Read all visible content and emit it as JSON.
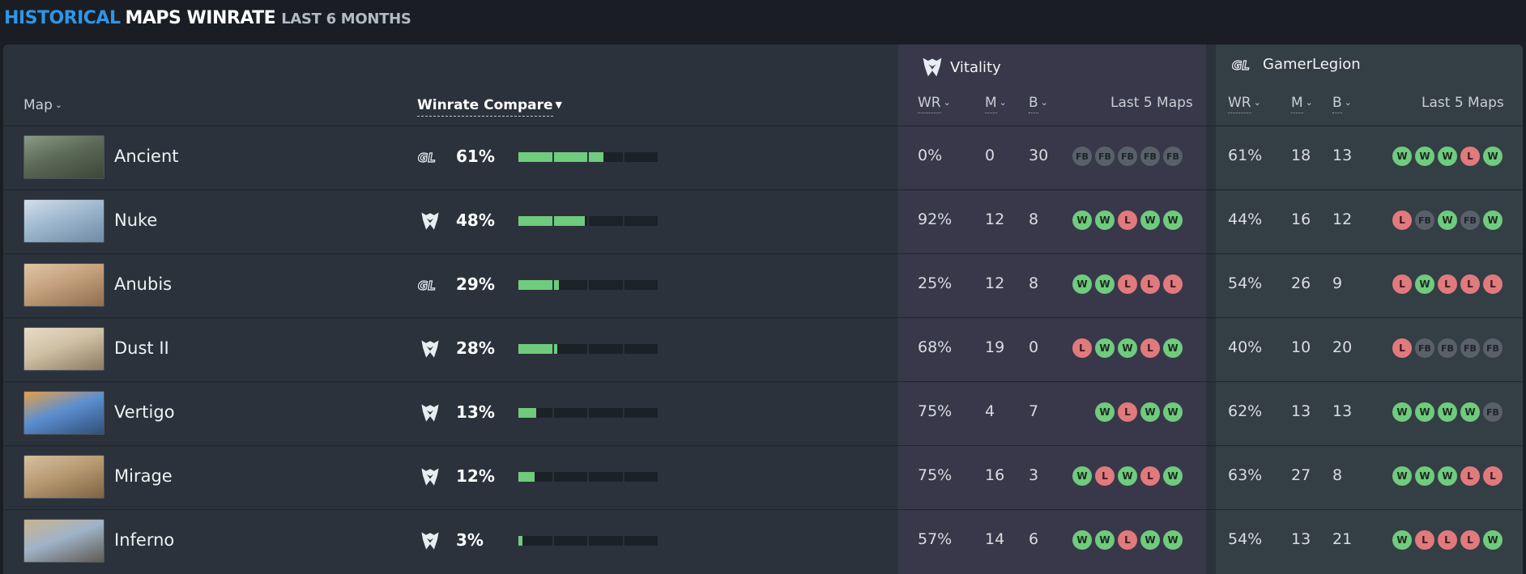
{
  "heading": {
    "part1": "HISTORICAL",
    "part2": "MAPS WINRATE",
    "part3": "LAST 6 MONTHS"
  },
  "headers": {
    "map": "Map",
    "compare": "Winrate Compare",
    "wr": "WR",
    "m": "M",
    "b": "B",
    "last5": "Last 5 Maps"
  },
  "teams": {
    "vitality": {
      "name": "Vitality"
    },
    "gamerlegion": {
      "name": "GamerLegion"
    }
  },
  "colors": {
    "accent": "#2f95e8",
    "win": "#6fcb7d",
    "loss": "#e07a7d",
    "fb": "#59606a"
  },
  "rows": [
    {
      "map": "Ancient",
      "cmp_team": "gamerlegion",
      "cmp_pct": "61%",
      "cmp_value": 61,
      "vit": {
        "wr": "0%",
        "m": "0",
        "b": "30",
        "last5": [
          "FB",
          "FB",
          "FB",
          "FB",
          "FB"
        ]
      },
      "gl": {
        "wr": "61%",
        "m": "18",
        "b": "13",
        "last5": [
          "W",
          "W",
          "W",
          "L",
          "W"
        ]
      }
    },
    {
      "map": "Nuke",
      "cmp_team": "vitality",
      "cmp_pct": "48%",
      "cmp_value": 48,
      "vit": {
        "wr": "92%",
        "m": "12",
        "b": "8",
        "last5": [
          "W",
          "W",
          "L",
          "W",
          "W"
        ]
      },
      "gl": {
        "wr": "44%",
        "m": "16",
        "b": "12",
        "last5": [
          "L",
          "FB",
          "W",
          "FB",
          "W"
        ]
      }
    },
    {
      "map": "Anubis",
      "cmp_team": "gamerlegion",
      "cmp_pct": "29%",
      "cmp_value": 29,
      "vit": {
        "wr": "25%",
        "m": "12",
        "b": "8",
        "last5": [
          "W",
          "W",
          "L",
          "L",
          "L"
        ]
      },
      "gl": {
        "wr": "54%",
        "m": "26",
        "b": "9",
        "last5": [
          "L",
          "W",
          "L",
          "L",
          "L"
        ]
      }
    },
    {
      "map": "Dust II",
      "cmp_team": "vitality",
      "cmp_pct": "28%",
      "cmp_value": 28,
      "vit": {
        "wr": "68%",
        "m": "19",
        "b": "0",
        "last5": [
          "L",
          "W",
          "W",
          "L",
          "W"
        ]
      },
      "gl": {
        "wr": "40%",
        "m": "10",
        "b": "20",
        "last5": [
          "L",
          "FB",
          "FB",
          "FB",
          "FB"
        ]
      }
    },
    {
      "map": "Vertigo",
      "cmp_team": "vitality",
      "cmp_pct": "13%",
      "cmp_value": 13,
      "vit": {
        "wr": "75%",
        "m": "4",
        "b": "7",
        "last5": [
          "W",
          "L",
          "W",
          "W"
        ]
      },
      "gl": {
        "wr": "62%",
        "m": "13",
        "b": "13",
        "last5": [
          "W",
          "W",
          "W",
          "W",
          "FB"
        ]
      }
    },
    {
      "map": "Mirage",
      "cmp_team": "vitality",
      "cmp_pct": "12%",
      "cmp_value": 12,
      "vit": {
        "wr": "75%",
        "m": "16",
        "b": "3",
        "last5": [
          "W",
          "L",
          "W",
          "L",
          "W"
        ]
      },
      "gl": {
        "wr": "63%",
        "m": "27",
        "b": "8",
        "last5": [
          "W",
          "W",
          "W",
          "L",
          "L"
        ]
      }
    },
    {
      "map": "Inferno",
      "cmp_team": "vitality",
      "cmp_pct": "3%",
      "cmp_value": 3,
      "vit": {
        "wr": "57%",
        "m": "14",
        "b": "6",
        "last5": [
          "W",
          "W",
          "L",
          "W",
          "W"
        ]
      },
      "gl": {
        "wr": "54%",
        "m": "13",
        "b": "21",
        "last5": [
          "W",
          "L",
          "L",
          "L",
          "W"
        ]
      }
    }
  ]
}
